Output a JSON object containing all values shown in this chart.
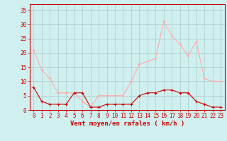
{
  "hours": [
    0,
    1,
    2,
    3,
    4,
    5,
    6,
    7,
    8,
    9,
    10,
    11,
    12,
    13,
    14,
    15,
    16,
    17,
    18,
    19,
    20,
    21,
    22,
    23
  ],
  "wind_avg": [
    8,
    3,
    2,
    2,
    2,
    6,
    6,
    1,
    1,
    2,
    2,
    2,
    2,
    5,
    6,
    6,
    7,
    7,
    6,
    6,
    3,
    2,
    1,
    1
  ],
  "wind_gust": [
    21,
    14,
    11,
    6,
    6,
    6,
    3,
    1,
    5,
    5,
    5,
    5,
    10,
    16,
    17,
    18,
    31,
    26,
    23,
    19,
    24,
    11,
    10,
    10
  ],
  "avg_color": "#cc0000",
  "gust_color": "#ffaaaa",
  "background_color": "#d0f0f0",
  "grid_color": "#aacccc",
  "xlabel": "Vent moyen/en rafales ( km/h )",
  "xlabel_color": "#cc0000",
  "yticks": [
    0,
    5,
    10,
    15,
    20,
    25,
    30,
    35
  ],
  "ylim": [
    0,
    37
  ],
  "xlim": [
    -0.5,
    23.5
  ],
  "tick_fontsize": 5.5,
  "xlabel_fontsize": 6.5
}
